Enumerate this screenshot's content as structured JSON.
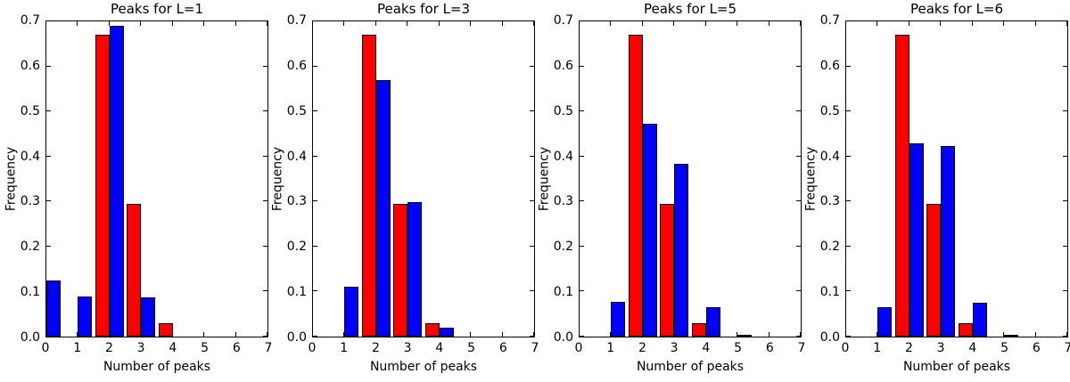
{
  "figure": {
    "background": "#ffffff",
    "axis_color": "#000000",
    "bar_edge_color": "#000000",
    "series_colors": {
      "red": "#ff0000",
      "blue": "#0000ff"
    }
  },
  "chart_data": [
    {
      "type": "bar",
      "title": "Peaks for L=1",
      "xlabel": "Number of peaks",
      "ylabel": "Frequency",
      "xlim": [
        0,
        7
      ],
      "ylim": [
        0.0,
        0.7
      ],
      "xticks": [
        "0",
        "1",
        "2",
        "3",
        "4",
        "5",
        "6",
        "7"
      ],
      "yticks": [
        "0.0",
        "0.1",
        "0.2",
        "0.3",
        "0.4",
        "0.5",
        "0.6",
        "0.7"
      ],
      "bar_width": 0.45,
      "grid": false,
      "legend": null,
      "series": [
        {
          "name": "red",
          "color": "#ff0000",
          "offset": -0.45,
          "points": [
            {
              "x": 2,
              "y": 0.67
            },
            {
              "x": 3,
              "y": 0.295
            },
            {
              "x": 4,
              "y": 0.03
            }
          ]
        },
        {
          "name": "blue",
          "color": "#0000ff",
          "offset": 0,
          "points": [
            {
              "x": 0,
              "y": 0.125
            },
            {
              "x": 1,
              "y": 0.09
            },
            {
              "x": 2,
              "y": 0.69
            },
            {
              "x": 3,
              "y": 0.088
            }
          ]
        }
      ]
    },
    {
      "type": "bar",
      "title": "Peaks for L=3",
      "xlabel": "Number of peaks",
      "ylabel": "Frequency",
      "xlim": [
        0,
        7
      ],
      "ylim": [
        0.0,
        0.7
      ],
      "xticks": [
        "0",
        "1",
        "2",
        "3",
        "4",
        "5",
        "6",
        "7"
      ],
      "yticks": [
        "0.0",
        "0.1",
        "0.2",
        "0.3",
        "0.4",
        "0.5",
        "0.6",
        "0.7"
      ],
      "bar_width": 0.45,
      "grid": false,
      "legend": null,
      "series": [
        {
          "name": "red",
          "color": "#ff0000",
          "offset": -0.45,
          "points": [
            {
              "x": 2,
              "y": 0.67
            },
            {
              "x": 3,
              "y": 0.295
            },
            {
              "x": 4,
              "y": 0.03
            }
          ]
        },
        {
          "name": "blue",
          "color": "#0000ff",
          "offset": 0,
          "points": [
            {
              "x": 1,
              "y": 0.11
            },
            {
              "x": 2,
              "y": 0.57
            },
            {
              "x": 3,
              "y": 0.298
            },
            {
              "x": 4,
              "y": 0.02
            }
          ]
        }
      ]
    },
    {
      "type": "bar",
      "title": "Peaks for L=5",
      "xlabel": "Number of peaks",
      "ylabel": "Frequency",
      "xlim": [
        0,
        7
      ],
      "ylim": [
        0.0,
        0.7
      ],
      "xticks": [
        "0",
        "1",
        "2",
        "3",
        "4",
        "5",
        "6",
        "7"
      ],
      "yticks": [
        "0.0",
        "0.1",
        "0.2",
        "0.3",
        "0.4",
        "0.5",
        "0.6",
        "0.7"
      ],
      "bar_width": 0.45,
      "grid": false,
      "legend": null,
      "series": [
        {
          "name": "red",
          "color": "#ff0000",
          "offset": -0.45,
          "points": [
            {
              "x": 2,
              "y": 0.67
            },
            {
              "x": 3,
              "y": 0.295
            },
            {
              "x": 4,
              "y": 0.03
            }
          ]
        },
        {
          "name": "blue",
          "color": "#0000ff",
          "offset": 0,
          "points": [
            {
              "x": 1,
              "y": 0.078
            },
            {
              "x": 2,
              "y": 0.473
            },
            {
              "x": 3,
              "y": 0.383
            },
            {
              "x": 4,
              "y": 0.065
            },
            {
              "x": 5,
              "y": 0.002
            }
          ]
        }
      ]
    },
    {
      "type": "bar",
      "title": "Peaks for L=6",
      "xlabel": "Number of peaks",
      "ylabel": "Frequency",
      "xlim": [
        0,
        7
      ],
      "ylim": [
        0.0,
        0.7
      ],
      "xticks": [
        "0",
        "1",
        "2",
        "3",
        "4",
        "5",
        "6",
        "7"
      ],
      "yticks": [
        "0.0",
        "0.1",
        "0.2",
        "0.3",
        "0.4",
        "0.5",
        "0.6",
        "0.7"
      ],
      "bar_width": 0.45,
      "grid": false,
      "legend": null,
      "series": [
        {
          "name": "red",
          "color": "#ff0000",
          "offset": -0.45,
          "points": [
            {
              "x": 2,
              "y": 0.67
            },
            {
              "x": 3,
              "y": 0.295
            },
            {
              "x": 4,
              "y": 0.03
            }
          ]
        },
        {
          "name": "blue",
          "color": "#0000ff",
          "offset": 0,
          "points": [
            {
              "x": 1,
              "y": 0.065
            },
            {
              "x": 2,
              "y": 0.43
            },
            {
              "x": 3,
              "y": 0.423
            },
            {
              "x": 4,
              "y": 0.075
            },
            {
              "x": 5,
              "y": 0.002
            }
          ]
        }
      ]
    }
  ]
}
